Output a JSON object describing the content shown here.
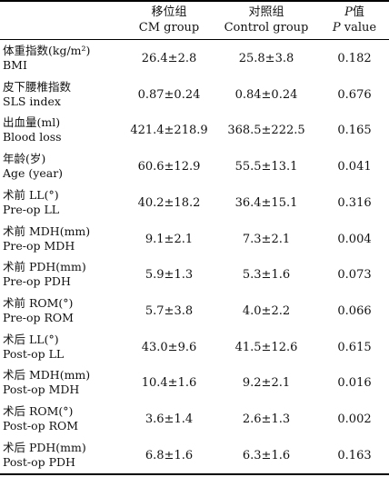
{
  "header": {
    "col1_zh": "移位组",
    "col1_en": "CM group",
    "col2_zh": "对照组",
    "col2_en": "Control group",
    "col3_sym": "P",
    "col3_zh": "值",
    "col3_sym2": "P",
    "col3_en": " value"
  },
  "rows": [
    {
      "zh": "体重指数(kg/m²)",
      "en": "BMI",
      "cm": "26.4±2.8",
      "ctrl": "25.8±3.8",
      "p": "0.182"
    },
    {
      "zh": "皮下腰椎指数",
      "en": "SLS index",
      "cm": "0.87±0.24",
      "ctrl": "0.84±0.24",
      "p": "0.676"
    },
    {
      "zh": "出血量(ml)",
      "en": "Blood loss",
      "cm": "421.4±218.9",
      "ctrl": "368.5±222.5",
      "p": "0.165"
    },
    {
      "zh": "年龄(岁)",
      "en": "Age (year)",
      "cm": "60.6±12.9",
      "ctrl": "55.5±13.1",
      "p": "0.041"
    },
    {
      "zh": "术前 LL(°)",
      "en": "Pre-op LL",
      "cm": "40.2±18.2",
      "ctrl": "36.4±15.1",
      "p": "0.316"
    },
    {
      "zh": "术前 MDH(mm)",
      "en": "Pre-op MDH",
      "cm": "9.1±2.1",
      "ctrl": "7.3±2.1",
      "p": "0.004"
    },
    {
      "zh": "术前 PDH(mm)",
      "en": "Pre-op PDH",
      "cm": "5.9±1.3",
      "ctrl": "5.3±1.6",
      "p": "0.073"
    },
    {
      "zh": "术前 ROM(°)",
      "en": "Pre-op ROM",
      "cm": "5.7±3.8",
      "ctrl": "4.0±2.2",
      "p": "0.066"
    },
    {
      "zh": "术后 LL(°)",
      "en": "Post-op LL",
      "cm": "43.0±9.6",
      "ctrl": "41.5±12.6",
      "p": "0.615"
    },
    {
      "zh": "术后 MDH(mm)",
      "en": "Post-op MDH",
      "cm": "10.4±1.6",
      "ctrl": "9.2±2.1",
      "p": "0.016"
    },
    {
      "zh": "术后 ROM(°)",
      "en": "Post-op ROM",
      "cm": "3.6±1.4",
      "ctrl": "2.6±1.3",
      "p": "0.002"
    },
    {
      "zh": "术后 PDH(mm)",
      "en": "Post-op PDH",
      "cm": "6.8±1.6",
      "ctrl": "6.3±1.6",
      "p": "0.163"
    }
  ]
}
